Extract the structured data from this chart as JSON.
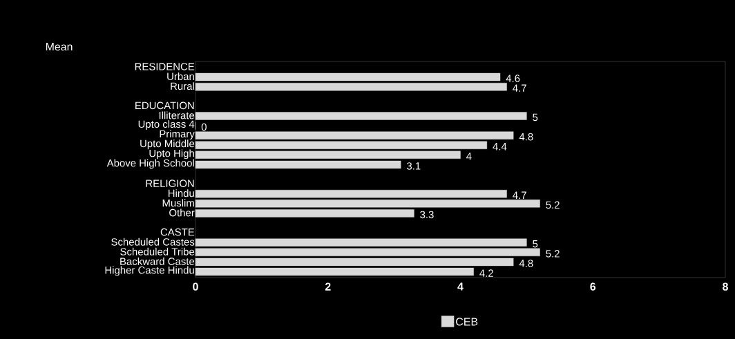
{
  "chart_data": {
    "type": "bar",
    "orientation": "horizontal",
    "title": "Mean",
    "categories": [
      "RESIDENCE",
      "Urban",
      "Rural",
      null,
      "EDUCATION",
      "Illiterate",
      "Upto class 4",
      "Primary",
      "Upto Middle",
      "Upto High",
      "Above High School",
      null,
      "RELIGION",
      "Hindu",
      "Muslim",
      "Other",
      null,
      "CASTE",
      "Scheduled Castes",
      "Scheduled Tribe",
      "Backward Caste",
      "Higher Caste Hindu"
    ],
    "series": [
      {
        "name": "CEB",
        "color": "#d9d9d9",
        "values": [
          null,
          4.6,
          4.7,
          null,
          null,
          5,
          0,
          4.8,
          4.4,
          4,
          3.1,
          null,
          null,
          4.7,
          5.2,
          3.3,
          null,
          null,
          5,
          5.2,
          4.8,
          4.2
        ]
      }
    ],
    "xlim": [
      0,
      8
    ],
    "xticks": [
      0,
      2,
      4,
      6,
      8
    ],
    "data_labels": true,
    "grid": false,
    "legend": "bottom"
  }
}
